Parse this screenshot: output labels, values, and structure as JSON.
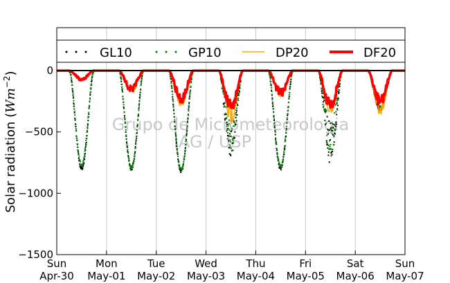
{
  "chart_data": {
    "type": "scatter",
    "title": "",
    "xlabel": "",
    "ylabel": "Solar radiation (",
    "ylabel_math": "Wm",
    "ylabel_exp": "−2",
    "ylabel_close": ")",
    "ylim": [
      -1500,
      350
    ],
    "xlim": [
      0,
      7
    ],
    "y_ticks": [
      0,
      -500,
      -1000,
      -1500
    ],
    "y_tick_labels": [
      "0",
      "−500",
      "−1000",
      "−1500"
    ],
    "x_ticks": [
      {
        "x": 0,
        "day": "Sun",
        "date": "Apr-30"
      },
      {
        "x": 1,
        "day": "Mon",
        "date": "May-01"
      },
      {
        "x": 2,
        "day": "Tue",
        "date": "May-02"
      },
      {
        "x": 3,
        "day": "Wed",
        "date": "May-03"
      },
      {
        "x": 4,
        "day": "Thu",
        "date": "May-04"
      },
      {
        "x": 5,
        "day": "Fri",
        "date": "May-05"
      },
      {
        "x": 6,
        "day": "Sat",
        "date": "May-06"
      },
      {
        "x": 7,
        "day": "Sun",
        "date": "May-07"
      }
    ],
    "grid": "vertical",
    "legend_position": "top",
    "watermark": [
      "Grupo de Micrometeorologia",
      "IAG / USP"
    ],
    "series": [
      {
        "name": "GL10",
        "style": "dots",
        "color": "#000000",
        "daily_minima": [
          -800,
          -800,
          -820,
          -700,
          -800,
          -760,
          -320,
          -5
        ]
      },
      {
        "name": "GP10",
        "style": "dots",
        "color": "#008000",
        "daily_minima": [
          -770,
          -790,
          -810,
          -680,
          -780,
          -740,
          -300,
          -5
        ]
      },
      {
        "name": "DP20",
        "style": "line",
        "color": "#ffa500",
        "daily_minima": [
          -70,
          -160,
          -250,
          -370,
          -190,
          -300,
          -310,
          -5
        ]
      },
      {
        "name": "DF20",
        "style": "thick-line",
        "color": "#ff0000",
        "daily_minima": [
          -70,
          -150,
          -230,
          -300,
          -180,
          -280,
          -250,
          -5
        ]
      }
    ]
  }
}
